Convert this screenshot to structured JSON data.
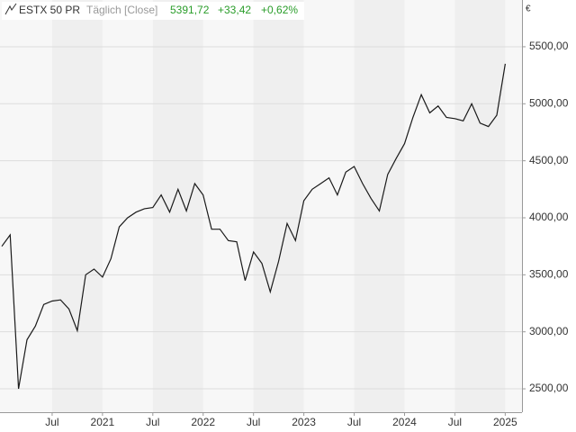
{
  "chart_data": {
    "type": "line",
    "header": {
      "symbol": "ESTX 50 PR",
      "interval": "Täglich [Close]",
      "last": "5391,72",
      "change": "+33,42",
      "change_pct": "+0,62%"
    },
    "currency": "€",
    "x": [
      "2020-01",
      "2020-02",
      "2020-03",
      "2020-04",
      "2020-05",
      "2020-06",
      "2020-07",
      "2020-08",
      "2020-09",
      "2020-10",
      "2020-11",
      "2020-12",
      "2021-01",
      "2021-02",
      "2021-03",
      "2021-04",
      "2021-05",
      "2021-06",
      "2021-07",
      "2021-08",
      "2021-09",
      "2021-10",
      "2021-11",
      "2021-12",
      "2022-01",
      "2022-02",
      "2022-03",
      "2022-04",
      "2022-05",
      "2022-06",
      "2022-07",
      "2022-08",
      "2022-09",
      "2022-10",
      "2022-11",
      "2022-12",
      "2023-01",
      "2023-02",
      "2023-03",
      "2023-04",
      "2023-05",
      "2023-06",
      "2023-07",
      "2023-08",
      "2023-09",
      "2023-10",
      "2023-11",
      "2023-12",
      "2024-01",
      "2024-02",
      "2024-03",
      "2024-04",
      "2024-05",
      "2024-06",
      "2024-07",
      "2024-08",
      "2024-09",
      "2024-10",
      "2024-11",
      "2024-12",
      "2025-01"
    ],
    "series": [
      {
        "name": "ESTX 50 PR",
        "color": "#1a1a1a",
        "values": [
          3750,
          3850,
          2500,
          2930,
          3050,
          3240,
          3270,
          3280,
          3200,
          3010,
          3500,
          3550,
          3480,
          3640,
          3920,
          4000,
          4050,
          4080,
          4090,
          4200,
          4050,
          4250,
          4060,
          4300,
          4200,
          3900,
          3900,
          3800,
          3790,
          3450,
          3700,
          3600,
          3350,
          3620,
          3950,
          3800,
          4150,
          4250,
          4300,
          4350,
          4200,
          4400,
          4450,
          4300,
          4170,
          4060,
          4380,
          4520,
          4650,
          4880,
          5080,
          4920,
          4980,
          4880,
          4870,
          4850,
          5000,
          4830,
          4800,
          4900,
          5350
        ]
      }
    ],
    "xlim": [
      "2020-01",
      "2025-03"
    ],
    "xticks": [
      {
        "value": "2020-07",
        "label": "Jul"
      },
      {
        "value": "2021-01",
        "label": "2021"
      },
      {
        "value": "2021-07",
        "label": "Jul"
      },
      {
        "value": "2022-01",
        "label": "2022"
      },
      {
        "value": "2022-07",
        "label": "Jul"
      },
      {
        "value": "2023-01",
        "label": "2023"
      },
      {
        "value": "2023-07",
        "label": "Jul"
      },
      {
        "value": "2024-01",
        "label": "2024"
      },
      {
        "value": "2024-07",
        "label": "Jul"
      },
      {
        "value": "2025-01",
        "label": "2025"
      }
    ],
    "ylim": [
      2295,
      5910
    ],
    "yticks": [
      {
        "value": 2500,
        "label": "2500,00"
      },
      {
        "value": 3000,
        "label": "3000,00"
      },
      {
        "value": 3500,
        "label": "3500,00"
      },
      {
        "value": 4000,
        "label": "4000,00"
      },
      {
        "value": 4500,
        "label": "4500,00"
      },
      {
        "value": 5000,
        "label": "5000,00"
      },
      {
        "value": 5500,
        "label": "5500,00"
      }
    ],
    "grid": true
  }
}
